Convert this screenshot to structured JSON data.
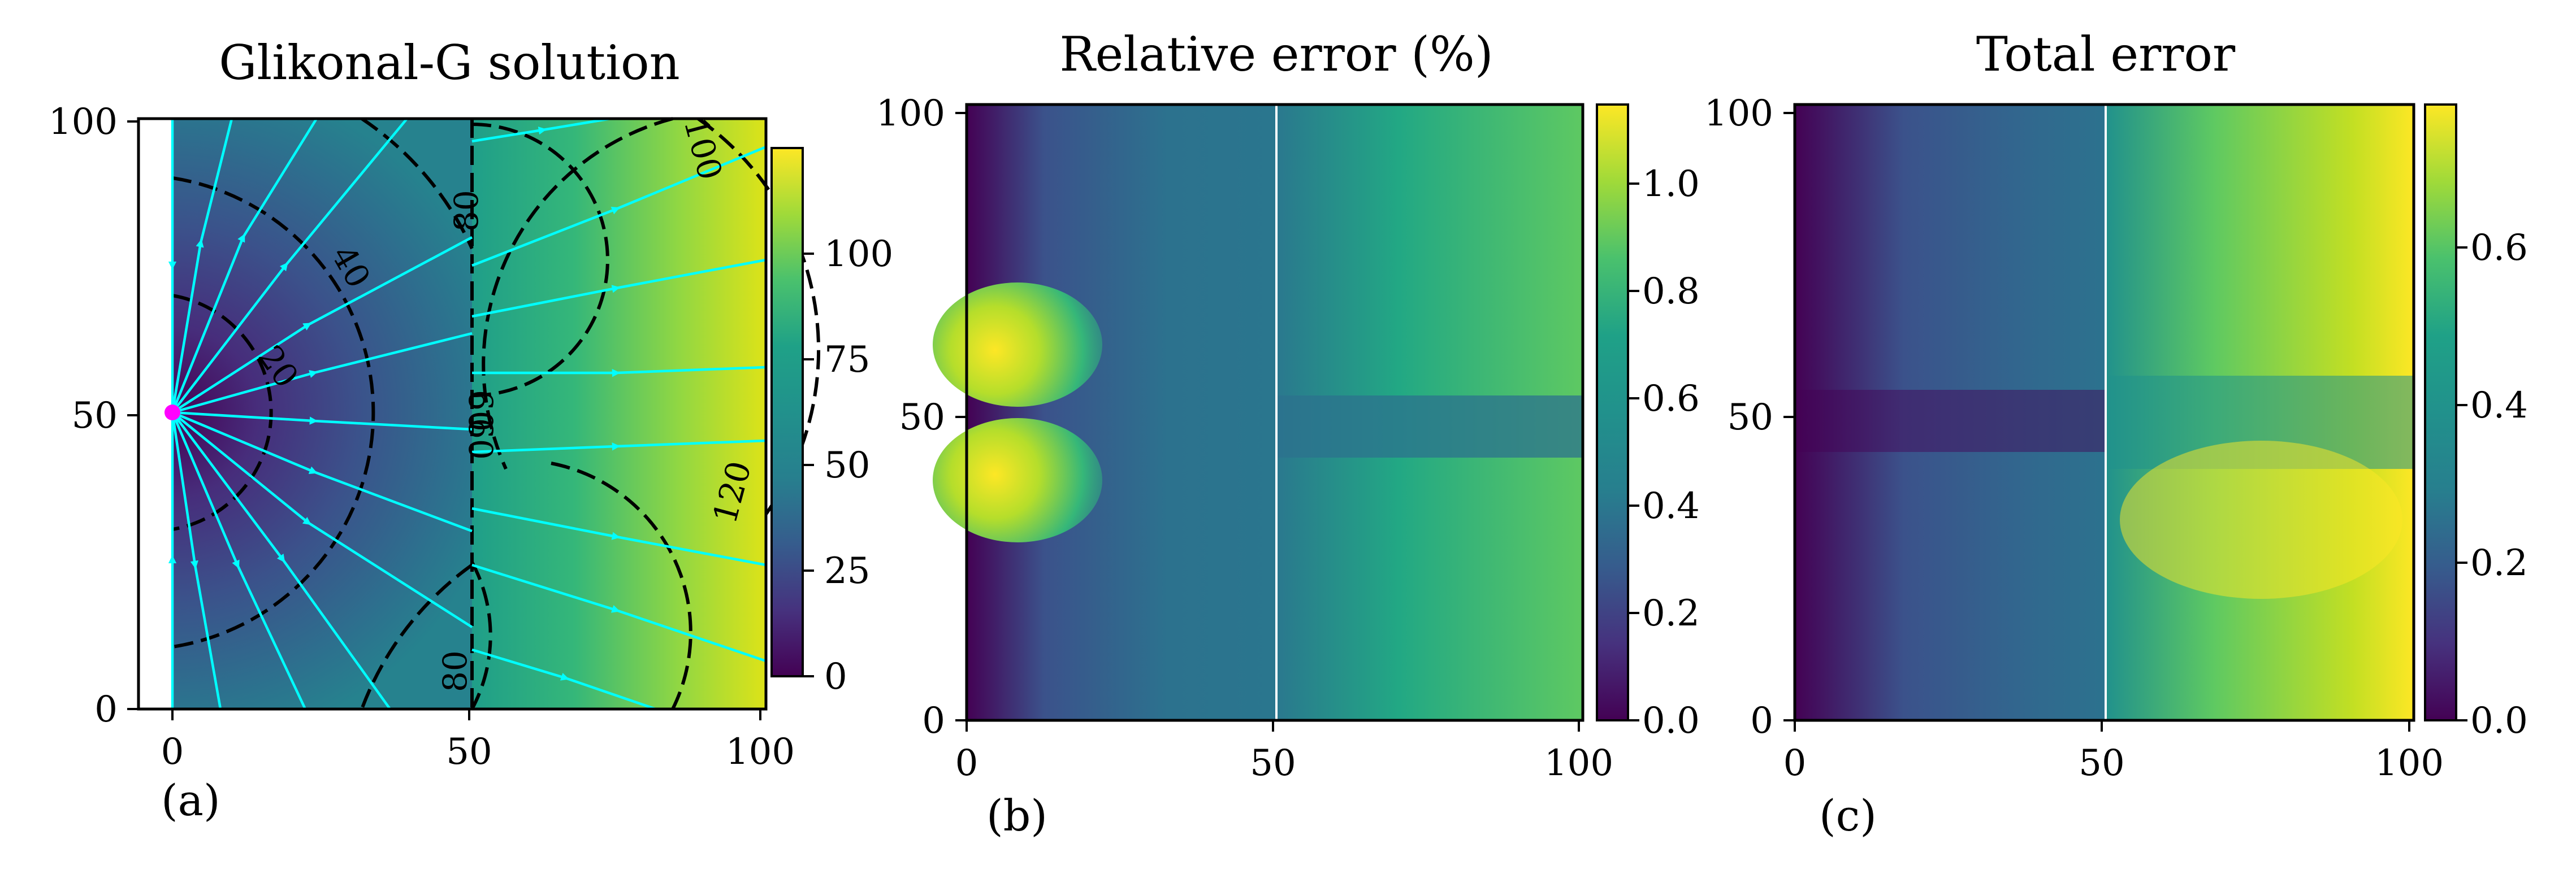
{
  "chart_data": [
    {
      "type": "heatmap",
      "panel_label": "(a)",
      "title": "Glikonal-G solution",
      "xlim": [
        0,
        100
      ],
      "ylim": [
        0,
        100
      ],
      "xticks": [
        "0",
        "50",
        "100"
      ],
      "yticks": [
        "0",
        "50",
        "100"
      ],
      "colorbar": {
        "range": [
          0,
          125
        ],
        "ticks": [
          "0",
          "25",
          "50",
          "75",
          "100"
        ]
      },
      "source_point": {
        "x": 0,
        "y": 50,
        "color": "#ff00ff"
      },
      "interface_x": 50,
      "contour_labels": [
        "20",
        "40",
        "60",
        "60",
        "80",
        "80",
        "100",
        "120"
      ],
      "streamline_color": "#00ffff",
      "colormap": "viridis"
    },
    {
      "type": "heatmap",
      "panel_label": "(b)",
      "title": "Relative error (%)",
      "xlim": [
        0,
        100
      ],
      "ylim": [
        0,
        100
      ],
      "xticks": [
        "0",
        "50",
        "100"
      ],
      "yticks": [
        "0",
        "50",
        "100"
      ],
      "colorbar": {
        "range": [
          0,
          1.1
        ],
        "ticks": [
          "0.0",
          "0.2",
          "0.4",
          "0.6",
          "0.8",
          "1.0"
        ]
      },
      "interface_x": 50,
      "colormap": "viridis"
    },
    {
      "type": "heatmap",
      "panel_label": "(c)",
      "title": "Total error",
      "xlim": [
        0,
        100
      ],
      "ylim": [
        0,
        100
      ],
      "xticks": [
        "0",
        "50",
        "100"
      ],
      "yticks": [
        "0",
        "50",
        "100"
      ],
      "colorbar": {
        "range": [
          0,
          0.78
        ],
        "ticks": [
          "0.0",
          "0.2",
          "0.4",
          "0.6"
        ]
      },
      "interface_x": 50,
      "colormap": "viridis"
    }
  ]
}
